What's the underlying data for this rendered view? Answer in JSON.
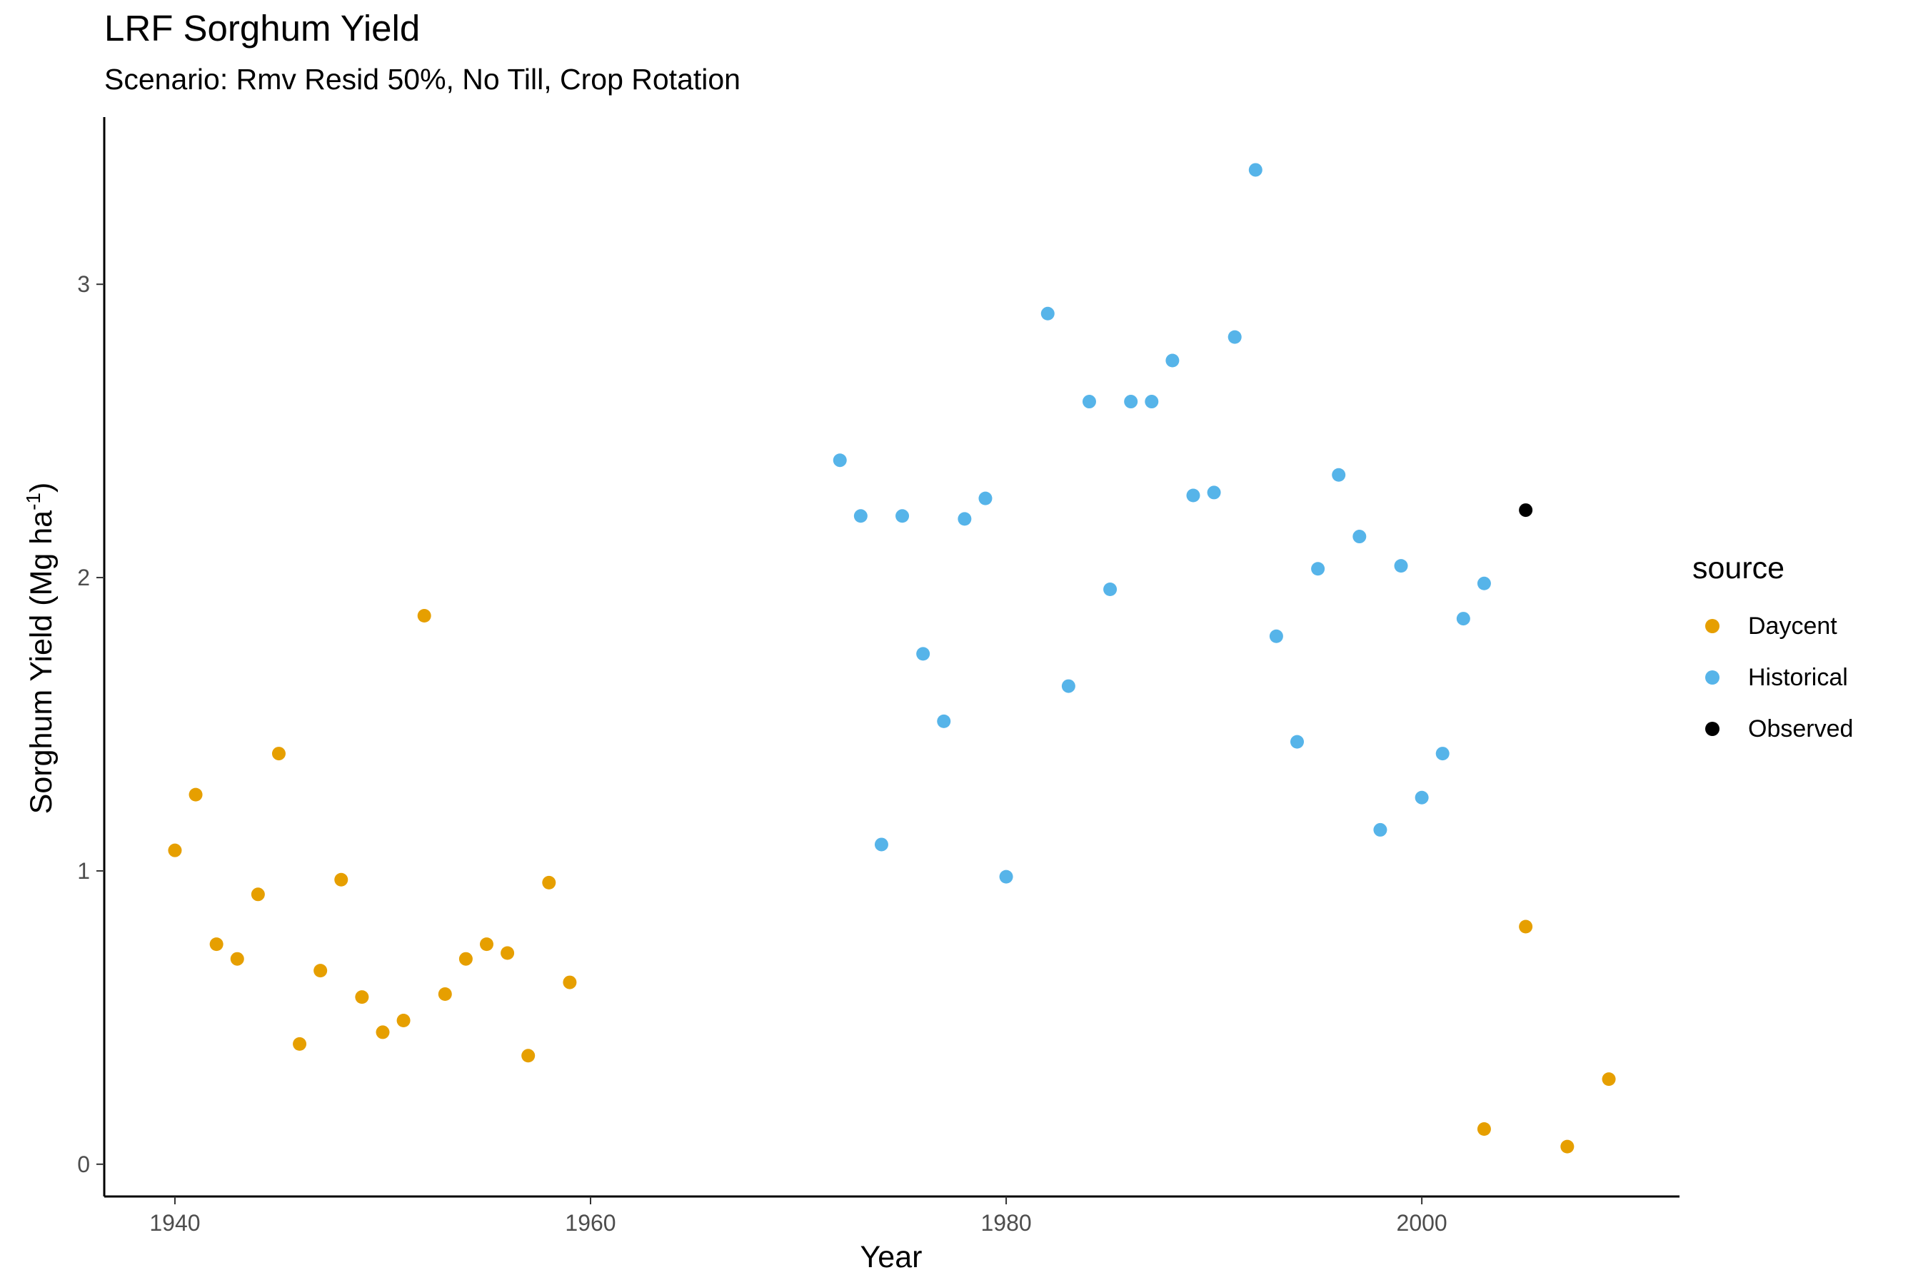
{
  "chart_data": {
    "type": "scatter",
    "title": "LRF Sorghum Yield",
    "subtitle": "Scenario: Rmv Resid 50%, No Till, Crop Rotation",
    "xlabel": "Year",
    "ylabel_main": "Sorghum Yield (Mg ha",
    "ylabel_sup": "-1",
    "ylabel_end": ")",
    "xlim": [
      1936.6,
      2012.4
    ],
    "ylim": [
      -0.11,
      3.57
    ],
    "x_ticks": [
      1940,
      1960,
      1980,
      2000
    ],
    "y_ticks": [
      0,
      1,
      2,
      3
    ],
    "legend": {
      "title": "source",
      "position": "right"
    },
    "series": [
      {
        "name": "Daycent",
        "color": "#E69F00",
        "points": [
          [
            1940,
            1.07
          ],
          [
            1941,
            1.26
          ],
          [
            1942,
            0.75
          ],
          [
            1943,
            0.7
          ],
          [
            1944,
            0.92
          ],
          [
            1945,
            1.4
          ],
          [
            1946,
            0.41
          ],
          [
            1947,
            0.66
          ],
          [
            1948,
            0.97
          ],
          [
            1949,
            0.57
          ],
          [
            1950,
            0.45
          ],
          [
            1951,
            0.49
          ],
          [
            1952,
            1.87
          ],
          [
            1953,
            0.58
          ],
          [
            1954,
            0.7
          ],
          [
            1955,
            0.75
          ],
          [
            1956,
            0.72
          ],
          [
            1957,
            0.37
          ],
          [
            1958,
            0.96
          ],
          [
            1959,
            0.62
          ],
          [
            2003,
            0.12
          ],
          [
            2005,
            0.81
          ],
          [
            2007,
            0.06
          ],
          [
            2009,
            0.29
          ]
        ]
      },
      {
        "name": "Historical",
        "color": "#56B4E9",
        "points": [
          [
            1972,
            2.4
          ],
          [
            1973,
            2.21
          ],
          [
            1974,
            1.09
          ],
          [
            1975,
            2.21
          ],
          [
            1976,
            1.74
          ],
          [
            1977,
            1.51
          ],
          [
            1978,
            2.2
          ],
          [
            1979,
            2.27
          ],
          [
            1980,
            0.98
          ],
          [
            1982,
            2.9
          ],
          [
            1983,
            1.63
          ],
          [
            1984,
            2.6
          ],
          [
            1985,
            1.96
          ],
          [
            1986,
            2.6
          ],
          [
            1987,
            2.6
          ],
          [
            1988,
            2.74
          ],
          [
            1989,
            2.28
          ],
          [
            1990,
            2.29
          ],
          [
            1991,
            2.82
          ],
          [
            1992,
            3.39
          ],
          [
            1993,
            1.8
          ],
          [
            1994,
            1.44
          ],
          [
            1995,
            2.03
          ],
          [
            1996,
            2.35
          ],
          [
            1997,
            2.14
          ],
          [
            1998,
            1.14
          ],
          [
            1999,
            2.04
          ],
          [
            2000,
            1.25
          ],
          [
            2001,
            1.4
          ],
          [
            2002,
            1.86
          ],
          [
            2003,
            1.98
          ]
        ]
      },
      {
        "name": "Observed",
        "color": "#000000",
        "points": [
          [
            2005,
            2.23
          ]
        ]
      }
    ]
  }
}
